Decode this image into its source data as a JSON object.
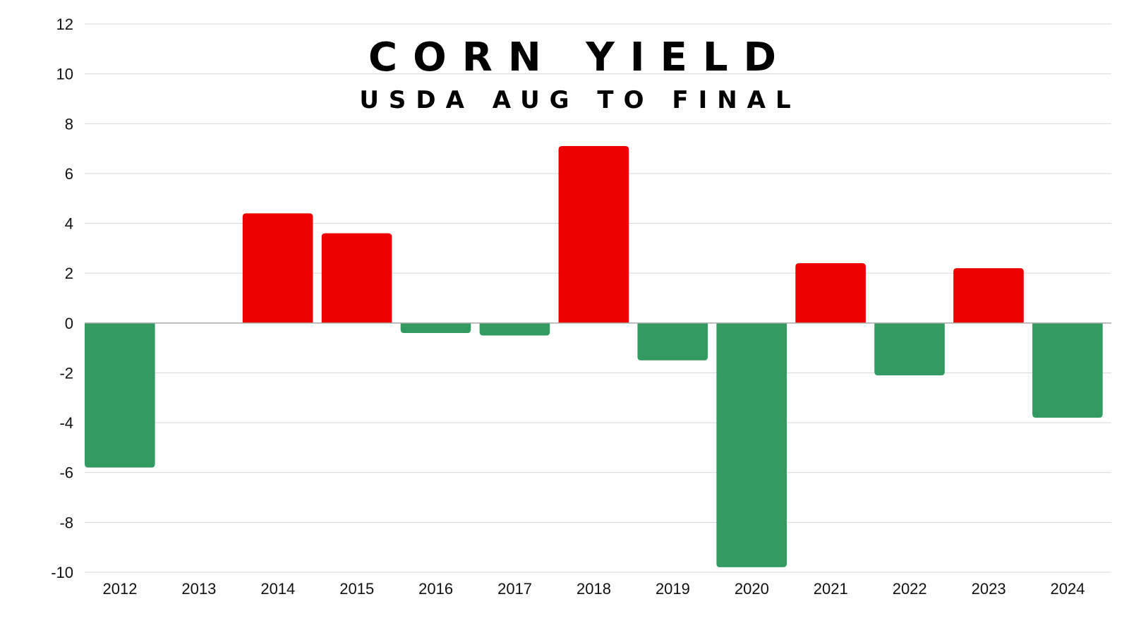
{
  "chart_data": {
    "type": "bar",
    "title": "CORN YIELD",
    "subtitle": "USDA AUG TO FINAL",
    "xlabel": "",
    "ylabel": "",
    "categories": [
      "2012",
      "2013",
      "2014",
      "2015",
      "2016",
      "2017",
      "2018",
      "2019",
      "2020",
      "2021",
      "2022",
      "2023",
      "2024"
    ],
    "values": [
      -5.8,
      0,
      4.4,
      3.6,
      -0.4,
      -0.5,
      7.1,
      -1.5,
      -9.8,
      2.4,
      -2.1,
      2.2,
      -3.8
    ],
    "ylim": [
      -10,
      12
    ],
    "yticks": [
      12,
      10,
      8,
      6,
      4,
      2,
      0,
      -2,
      -4,
      -6,
      -8,
      -10
    ],
    "grid": true,
    "legend": "none",
    "colors": {
      "positive": "#ee0000",
      "negative": "#339a62",
      "grid": "#d9d9d9",
      "zero_line": "#aaaaaa"
    }
  }
}
